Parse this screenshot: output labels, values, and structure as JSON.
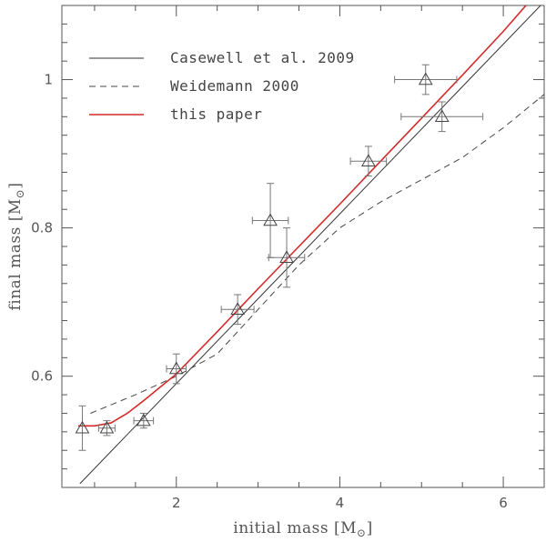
{
  "chart_data": {
    "type": "scatter",
    "xlabel": "initial mass [M",
    "ylabel": "final mass [M",
    "unit_symbol": "⊙",
    "xlim": [
      0.6,
      6.5
    ],
    "ylim": [
      0.45,
      1.1
    ],
    "x_ticks": [
      2,
      4,
      6
    ],
    "y_ticks": [
      0.6,
      0.8,
      1
    ],
    "x_tick_labels": [
      "2",
      "4",
      "6"
    ],
    "y_tick_labels": [
      "0.6",
      "0.8",
      "1"
    ],
    "legend_position": "top-left",
    "series": [
      {
        "name": "Casewell et al. 2009",
        "kind": "line",
        "style": "solid",
        "color": "#333333",
        "x": [
          0.82,
          6.5
        ],
        "y": [
          0.455,
          1.105
        ]
      },
      {
        "name": "Weidemann 2000",
        "kind": "line",
        "style": "dashed",
        "color": "#444444",
        "x": [
          0.95,
          1.5,
          2.0,
          2.5,
          3.0,
          3.5,
          4.0,
          4.5,
          5.0,
          5.5,
          6.0,
          6.5
        ],
        "y": [
          0.55,
          0.575,
          0.6,
          0.63,
          0.69,
          0.75,
          0.8,
          0.835,
          0.865,
          0.895,
          0.935,
          0.98
        ]
      },
      {
        "name": "this paper",
        "kind": "line",
        "style": "solid",
        "color": "#d42a2a",
        "x": [
          0.8,
          1.0,
          1.2,
          1.4,
          1.6,
          1.8,
          2.0,
          2.5,
          3.0,
          3.5,
          4.0,
          4.5,
          5.0,
          5.5,
          6.0,
          6.3
        ],
        "y": [
          0.533,
          0.533,
          0.537,
          0.55,
          0.567,
          0.585,
          0.603,
          0.66,
          0.718,
          0.775,
          0.832,
          0.89,
          0.948,
          1.006,
          1.065,
          1.103
        ]
      }
    ],
    "points": {
      "marker": "triangle",
      "x": [
        0.85,
        1.15,
        1.6,
        2.0,
        2.75,
        3.15,
        3.35,
        4.35,
        5.05,
        5.25
      ],
      "y": [
        0.53,
        0.53,
        0.54,
        0.61,
        0.69,
        0.81,
        0.76,
        0.89,
        1.0,
        0.95
      ],
      "x_err": [
        0.0,
        0.1,
        0.12,
        0.12,
        0.2,
        0.22,
        0.22,
        0.22,
        0.38,
        0.5
      ],
      "y_err": [
        0.03,
        0.01,
        0.01,
        0.02,
        0.02,
        0.05,
        0.04,
        0.02,
        0.02,
        0.02
      ]
    }
  }
}
